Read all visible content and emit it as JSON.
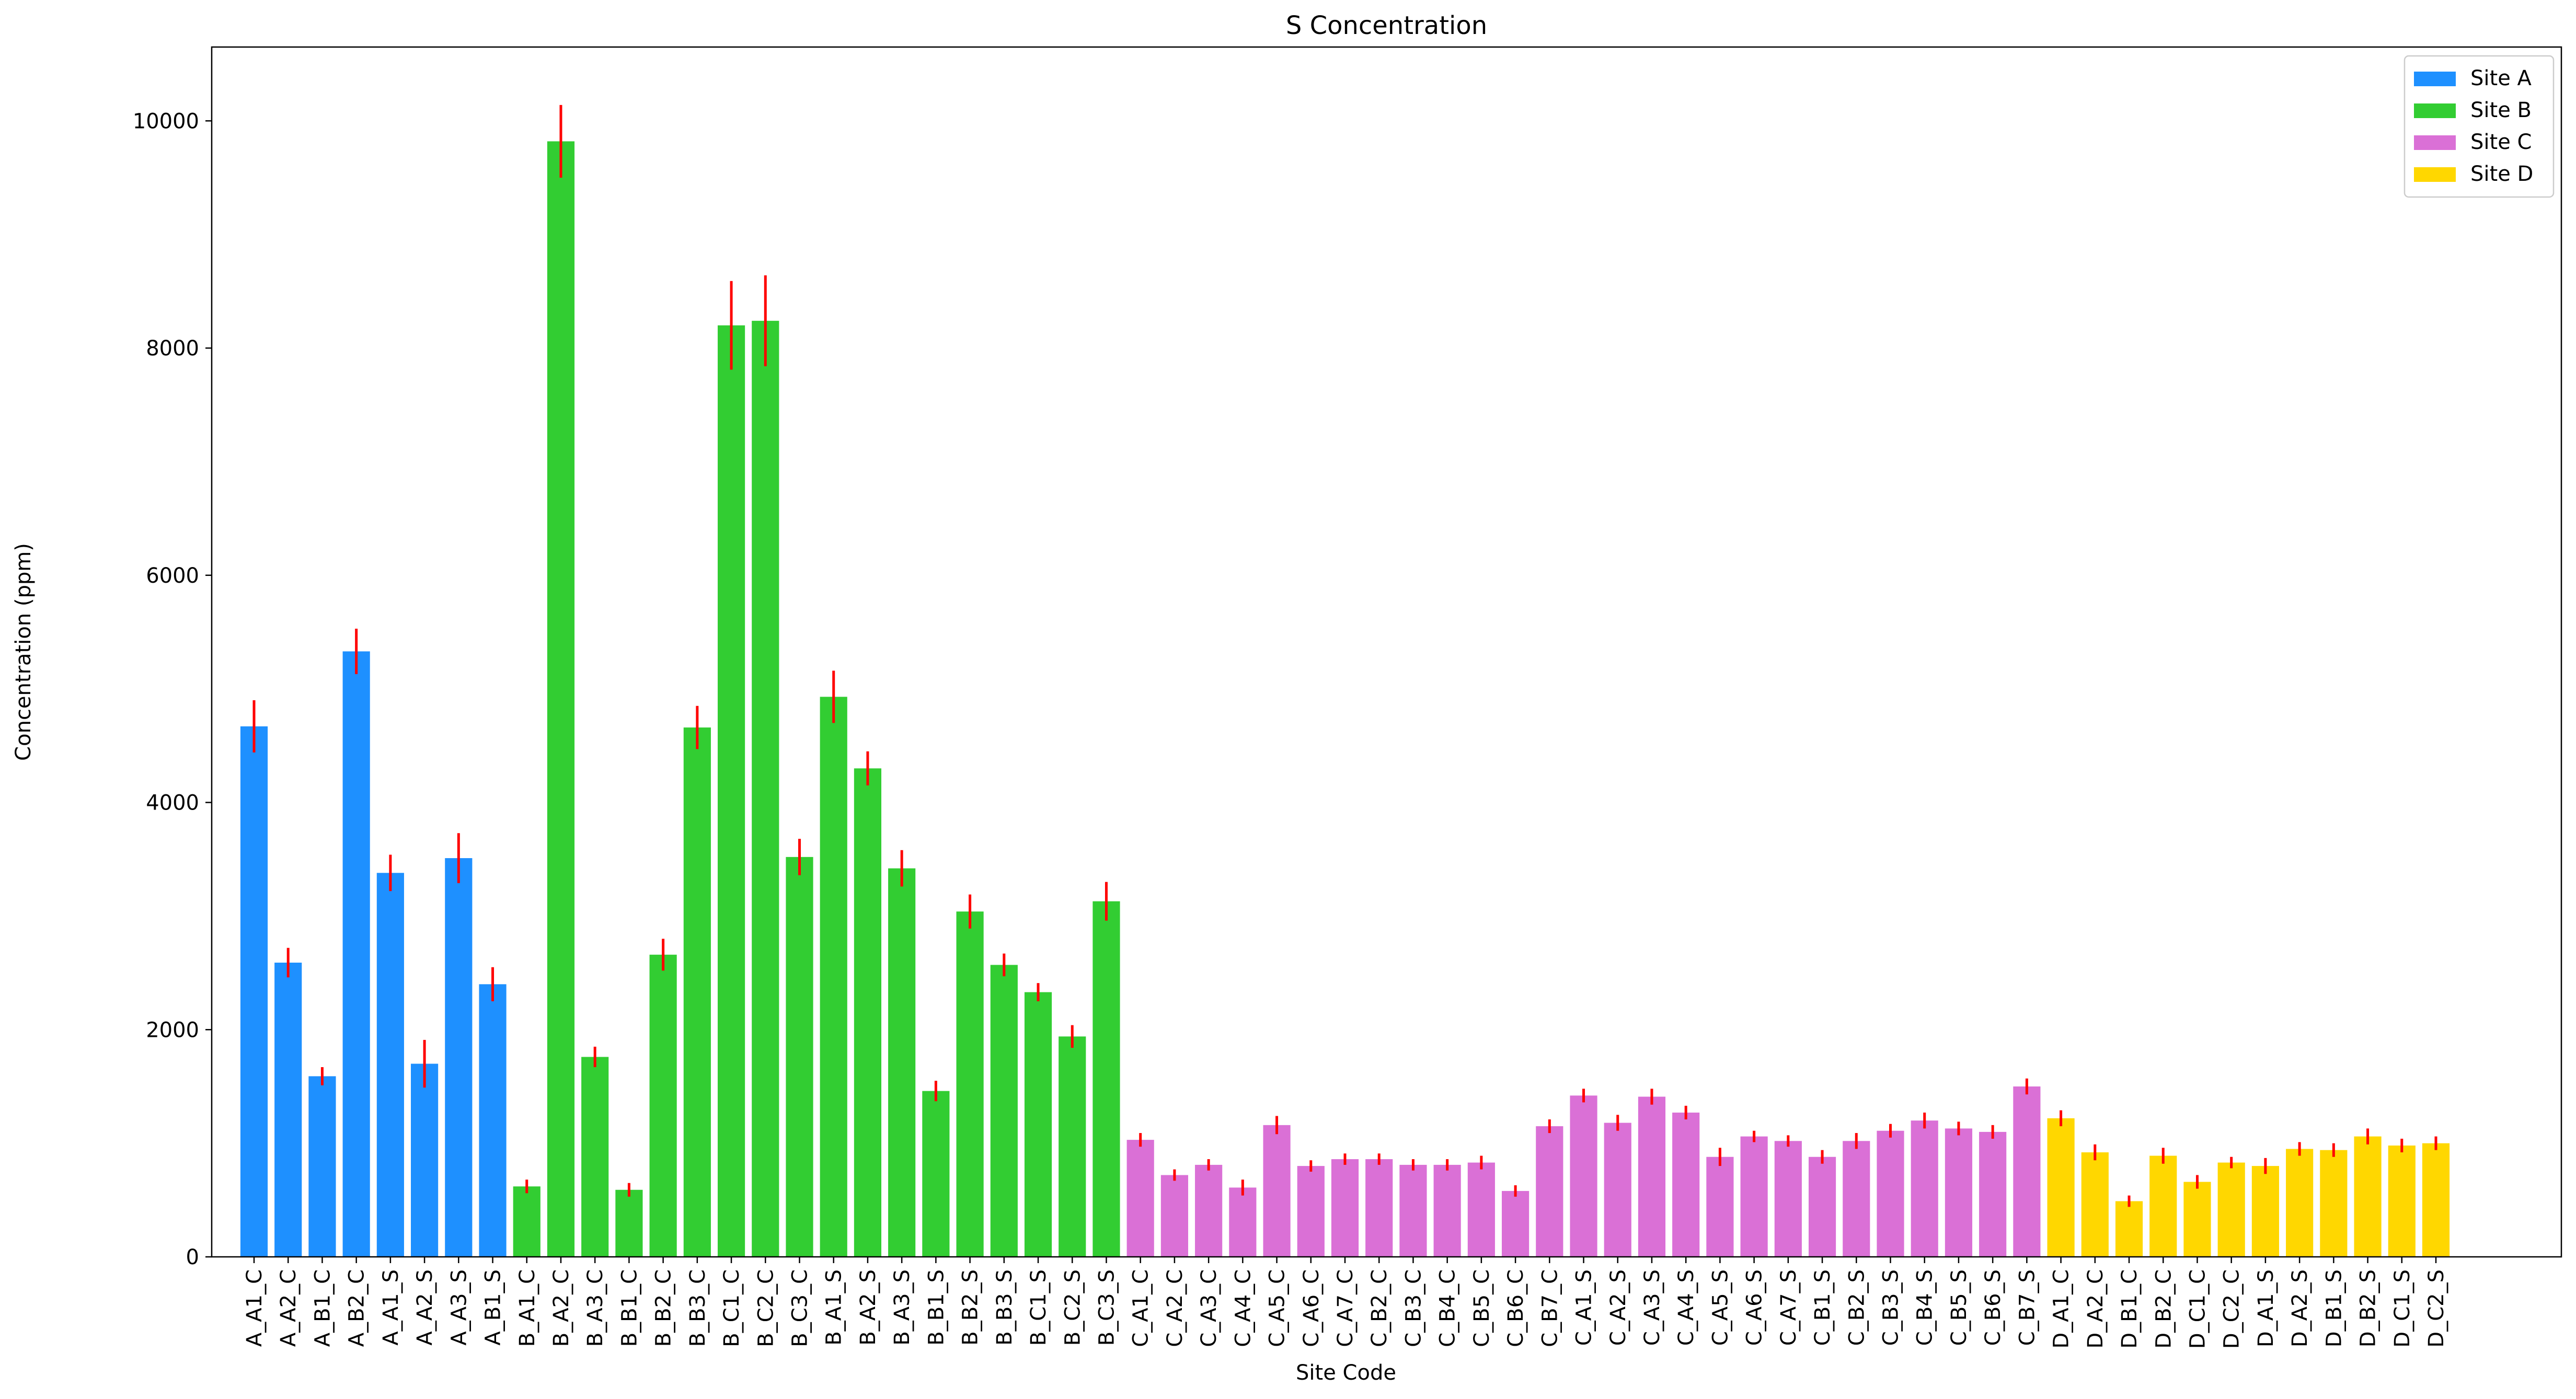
{
  "chart_data": {
    "type": "bar",
    "title": "S Concentration",
    "xlabel": "Site Code",
    "ylabel": "Concentration (ppm)",
    "ylim": [
      0,
      10650
    ],
    "yticks": [
      0,
      2000,
      4000,
      6000,
      8000,
      10000
    ],
    "grid": false,
    "legend_position": "top-right",
    "error_bar_color": "#ff0000",
    "series": [
      {
        "name": "Site A",
        "color": "#1e90ff",
        "categories": [
          "A_A1_C",
          "A_A2_C",
          "A_B1_C",
          "A_B2_C",
          "A_A1_S",
          "A_A2_S",
          "A_A3_S",
          "A_B1_S"
        ],
        "values": [
          4670,
          2590,
          1590,
          5330,
          3380,
          1700,
          3510,
          2400
        ],
        "errors": [
          230,
          130,
          80,
          200,
          160,
          210,
          220,
          150
        ]
      },
      {
        "name": "Site B",
        "color": "#32cd32",
        "categories": [
          "B_A1_C",
          "B_A2_C",
          "B_A3_C",
          "B_B1_C",
          "B_B2_C",
          "B_B3_C",
          "B_C1_C",
          "B_C2_C",
          "B_C3_C",
          "B_A1_S",
          "B_A2_S",
          "B_A3_S",
          "B_B1_S",
          "B_B2_S",
          "B_B3_S",
          "B_C1_S",
          "B_C2_S",
          "B_C3_S"
        ],
        "values": [
          620,
          9820,
          1760,
          590,
          2660,
          4660,
          8200,
          8240,
          3520,
          4930,
          4300,
          3420,
          1460,
          3040,
          2570,
          2330,
          1940,
          3130
        ],
        "errors": [
          60,
          320,
          90,
          60,
          140,
          190,
          390,
          400,
          160,
          230,
          150,
          160,
          90,
          150,
          100,
          80,
          100,
          170
        ]
      },
      {
        "name": "Site C",
        "color": "#da70d6",
        "categories": [
          "C_A1_C",
          "C_A2_C",
          "C_A3_C",
          "C_A4_C",
          "C_A5_C",
          "C_A6_C",
          "C_A7_C",
          "C_B2_C",
          "C_B3_C",
          "C_B4_C",
          "C_B5_C",
          "C_B6_C",
          "C_B7_C",
          "C_A1_S",
          "C_A2_S",
          "C_A3_S",
          "C_A4_S",
          "C_A5_S",
          "C_A6_S",
          "C_A7_S",
          "C_B1_S",
          "C_B2_S",
          "C_B3_S",
          "C_B4_S",
          "C_B5_S",
          "C_B6_S",
          "C_B7_S"
        ],
        "values": [
          1030,
          720,
          810,
          610,
          1160,
          800,
          860,
          860,
          810,
          810,
          830,
          580,
          1150,
          1420,
          1180,
          1410,
          1270,
          880,
          1060,
          1020,
          880,
          1020,
          1110,
          1200,
          1130,
          1100,
          1500
        ],
        "errors": [
          60,
          50,
          50,
          70,
          80,
          50,
          50,
          50,
          50,
          50,
          60,
          50,
          60,
          60,
          70,
          70,
          60,
          80,
          50,
          50,
          60,
          70,
          60,
          70,
          60,
          60,
          70
        ]
      },
      {
        "name": "Site D",
        "color": "#ffd700",
        "categories": [
          "D_A1_C",
          "D_A2_C",
          "D_B1_C",
          "D_B2_C",
          "D_C1_C",
          "D_C2_C",
          "D_A1_S",
          "D_A2_S",
          "D_B1_S",
          "D_B2_S",
          "D_C1_S",
          "D_C2_S"
        ],
        "values": [
          1220,
          920,
          490,
          890,
          660,
          830,
          800,
          950,
          940,
          1060,
          980,
          1000
        ],
        "errors": [
          70,
          70,
          50,
          70,
          60,
          50,
          70,
          60,
          60,
          70,
          60,
          60
        ]
      }
    ]
  }
}
